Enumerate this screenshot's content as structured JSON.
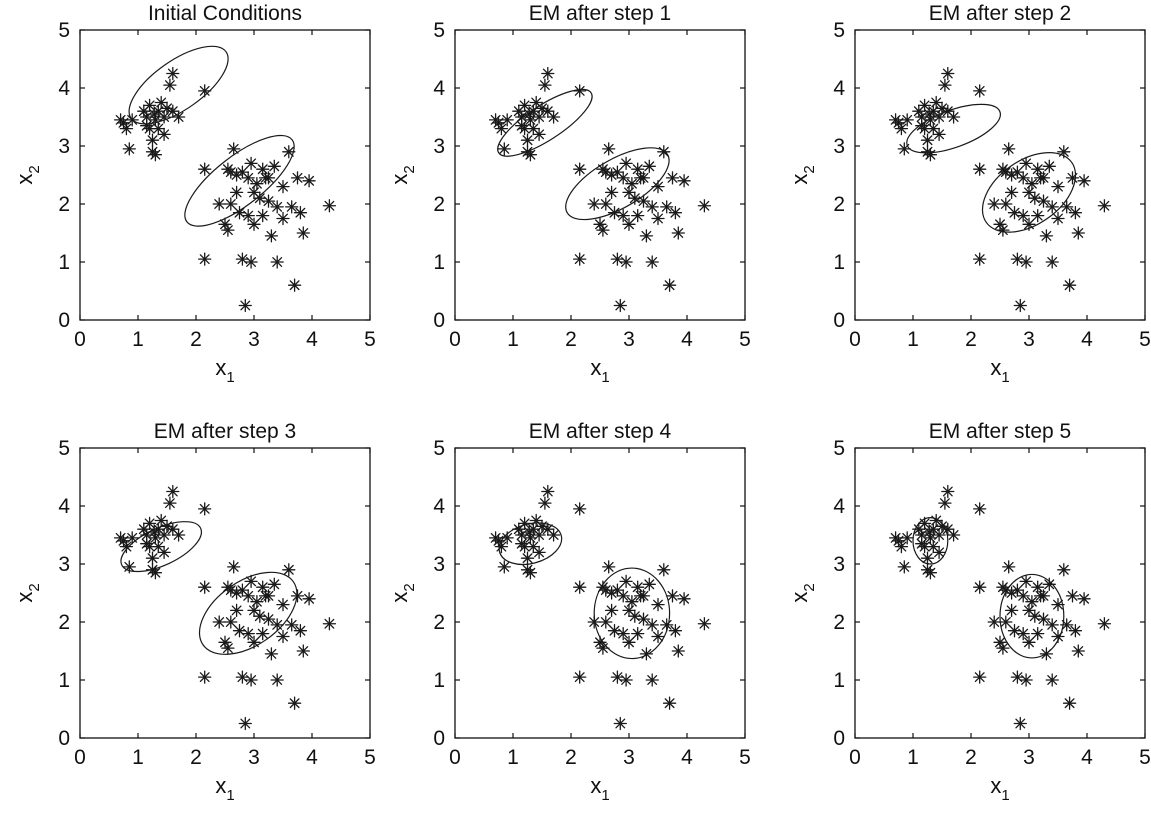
{
  "chart_data": [
    {
      "type": "scatter",
      "title": "Initial Conditions",
      "xlabel": "x",
      "xlabel_sub": "1",
      "ylabel": "x",
      "ylabel_sub": "2",
      "xlim": [
        0,
        5
      ],
      "ylim": [
        0,
        5
      ],
      "xticks": [
        0,
        1,
        2,
        3,
        4,
        5
      ],
      "yticks": [
        0,
        1,
        2,
        3,
        4,
        5
      ],
      "grid": false,
      "ellipses": [
        {
          "cx": 1.7,
          "cy": 4.05,
          "rx": 1.0,
          "ry": 0.42,
          "angle_deg": -35
        },
        {
          "cx": 2.75,
          "cy": 2.4,
          "rx": 1.15,
          "ry": 0.42,
          "angle_deg": -38
        }
      ]
    },
    {
      "type": "scatter",
      "title": "EM after step 1",
      "xlabel": "x",
      "xlabel_sub": "1",
      "ylabel": "x",
      "ylabel_sub": "2",
      "xlim": [
        0,
        5
      ],
      "ylim": [
        0,
        5
      ],
      "xticks": [
        0,
        1,
        2,
        3,
        4,
        5
      ],
      "yticks": [
        0,
        1,
        2,
        3,
        4,
        5
      ],
      "grid": false,
      "ellipses": [
        {
          "cx": 1.55,
          "cy": 3.4,
          "rx": 0.95,
          "ry": 0.3,
          "angle_deg": -33
        },
        {
          "cx": 2.8,
          "cy": 2.35,
          "rx": 1.0,
          "ry": 0.42,
          "angle_deg": -30
        }
      ]
    },
    {
      "type": "scatter",
      "title": "EM after step 2",
      "xlabel": "x",
      "xlabel_sub": "1",
      "ylabel": "x",
      "ylabel_sub": "2",
      "xlim": [
        0,
        5
      ],
      "ylim": [
        0,
        5
      ],
      "xticks": [
        0,
        1,
        2,
        3,
        4,
        5
      ],
      "yticks": [
        0,
        1,
        2,
        3,
        4,
        5
      ],
      "grid": false,
      "ellipses": [
        {
          "cx": 1.7,
          "cy": 3.3,
          "rx": 0.85,
          "ry": 0.32,
          "angle_deg": -20
        },
        {
          "cx": 3.0,
          "cy": 2.2,
          "rx": 0.9,
          "ry": 0.55,
          "angle_deg": -35
        }
      ]
    },
    {
      "type": "scatter",
      "title": "EM after step 3",
      "xlabel": "x",
      "xlabel_sub": "1",
      "ylabel": "x",
      "ylabel_sub": "2",
      "xlim": [
        0,
        5
      ],
      "ylim": [
        0,
        5
      ],
      "xticks": [
        0,
        1,
        2,
        3,
        4,
        5
      ],
      "yticks": [
        0,
        1,
        2,
        3,
        4,
        5
      ],
      "grid": false,
      "ellipses": [
        {
          "cx": 1.4,
          "cy": 3.3,
          "rx": 0.75,
          "ry": 0.32,
          "angle_deg": -25
        },
        {
          "cx": 2.9,
          "cy": 2.15,
          "rx": 0.95,
          "ry": 0.55,
          "angle_deg": -35
        }
      ]
    },
    {
      "type": "scatter",
      "title": "EM after step 4",
      "xlabel": "x",
      "xlabel_sub": "1",
      "ylabel": "x",
      "ylabel_sub": "2",
      "xlim": [
        0,
        5
      ],
      "ylim": [
        0,
        5
      ],
      "xticks": [
        0,
        1,
        2,
        3,
        4,
        5
      ],
      "yticks": [
        0,
        1,
        2,
        3,
        4,
        5
      ],
      "grid": false,
      "ellipses": [
        {
          "cx": 1.3,
          "cy": 3.35,
          "rx": 0.55,
          "ry": 0.34,
          "angle_deg": -15
        },
        {
          "cx": 3.05,
          "cy": 2.15,
          "rx": 0.65,
          "ry": 0.78,
          "angle_deg": 0
        }
      ]
    },
    {
      "type": "scatter",
      "title": "EM after step 5",
      "xlabel": "x",
      "xlabel_sub": "1",
      "ylabel": "x",
      "ylabel_sub": "2",
      "xlim": [
        0,
        5
      ],
      "ylim": [
        0,
        5
      ],
      "xticks": [
        0,
        1,
        2,
        3,
        4,
        5
      ],
      "yticks": [
        0,
        1,
        2,
        3,
        4,
        5
      ],
      "grid": false,
      "ellipses": [
        {
          "cx": 1.3,
          "cy": 3.4,
          "rx": 0.3,
          "ry": 0.4,
          "angle_deg": 0
        },
        {
          "cx": 3.05,
          "cy": 2.1,
          "rx": 0.55,
          "ry": 0.72,
          "angle_deg": 0
        }
      ]
    }
  ],
  "points": [
    [
      0.7,
      3.45
    ],
    [
      0.75,
      3.4
    ],
    [
      0.8,
      3.3
    ],
    [
      0.85,
      2.95
    ],
    [
      0.9,
      3.45
    ],
    [
      1.1,
      3.6
    ],
    [
      1.15,
      3.5
    ],
    [
      1.2,
      3.7
    ],
    [
      1.2,
      3.3
    ],
    [
      1.25,
      3.1
    ],
    [
      1.25,
      2.9
    ],
    [
      1.3,
      2.85
    ],
    [
      1.3,
      3.45
    ],
    [
      1.35,
      3.6
    ],
    [
      1.35,
      3.3
    ],
    [
      1.4,
      3.75
    ],
    [
      1.45,
      3.5
    ],
    [
      1.45,
      3.2
    ],
    [
      1.5,
      3.65
    ],
    [
      1.55,
      4.05
    ],
    [
      1.6,
      4.25
    ],
    [
      1.6,
      3.6
    ],
    [
      1.7,
      3.5
    ],
    [
      1.15,
      3.35
    ],
    [
      1.28,
      3.55
    ],
    [
      2.15,
      3.95
    ],
    [
      2.15,
      2.6
    ],
    [
      2.15,
      1.05
    ],
    [
      2.4,
      2.0
    ],
    [
      2.5,
      1.65
    ],
    [
      2.55,
      1.55
    ],
    [
      2.6,
      2.55
    ],
    [
      2.6,
      2.0
    ],
    [
      2.65,
      2.95
    ],
    [
      2.7,
      2.5
    ],
    [
      2.7,
      2.2
    ],
    [
      2.75,
      1.85
    ],
    [
      2.8,
      2.55
    ],
    [
      2.8,
      1.05
    ],
    [
      2.85,
      0.25
    ],
    [
      2.9,
      2.45
    ],
    [
      2.9,
      1.8
    ],
    [
      2.95,
      2.7
    ],
    [
      2.95,
      1.0
    ],
    [
      3.0,
      2.2
    ],
    [
      3.0,
      1.65
    ],
    [
      3.1,
      2.1
    ],
    [
      3.15,
      2.6
    ],
    [
      3.15,
      1.8
    ],
    [
      3.2,
      2.45
    ],
    [
      3.25,
      2.05
    ],
    [
      3.3,
      1.45
    ],
    [
      3.35,
      2.65
    ],
    [
      3.4,
      1.95
    ],
    [
      3.4,
      1.0
    ],
    [
      3.5,
      2.3
    ],
    [
      3.5,
      1.75
    ],
    [
      3.6,
      2.9
    ],
    [
      3.65,
      1.95
    ],
    [
      3.7,
      0.6
    ],
    [
      3.75,
      2.45
    ],
    [
      3.8,
      1.85
    ],
    [
      3.85,
      1.5
    ],
    [
      3.95,
      2.4
    ],
    [
      4.3,
      1.97
    ],
    [
      3.25,
      2.45
    ],
    [
      2.55,
      2.6
    ],
    [
      3.05,
      2.35
    ]
  ]
}
